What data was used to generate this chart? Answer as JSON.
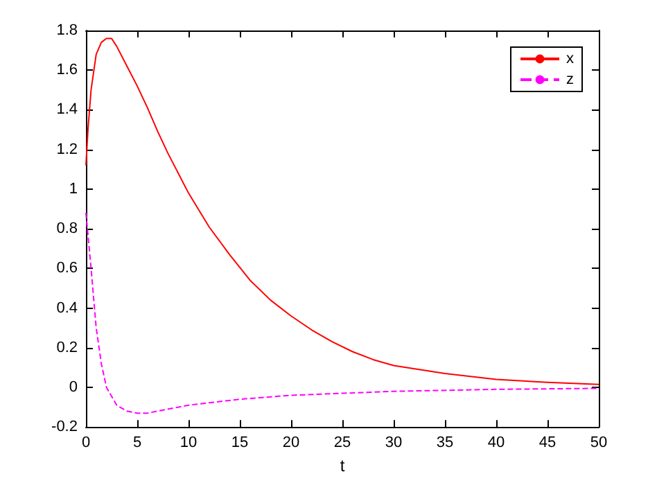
{
  "chart_data": {
    "type": "line",
    "xlabel": "t",
    "xlim": [
      0,
      50
    ],
    "xticks": [
      0,
      5,
      10,
      15,
      20,
      25,
      30,
      35,
      40,
      45,
      50
    ],
    "ylim": [
      -0.2,
      1.8
    ],
    "yticks": [
      -0.2,
      0,
      0.2,
      0.4,
      0.6,
      0.8,
      1,
      1.2,
      1.4,
      1.6,
      1.8
    ],
    "grid": false,
    "legend": "top right",
    "marker": "none",
    "series": [
      {
        "name": "x",
        "color": "#ff0000",
        "line_style": "solid",
        "x": [
          0,
          0.2,
          0.5,
          1,
          1.5,
          2,
          2.5,
          3,
          4,
          5,
          6,
          7,
          8,
          9,
          10,
          12,
          14,
          16,
          18,
          20,
          22,
          24,
          26,
          28,
          30,
          35,
          40,
          45,
          50
        ],
        "values": [
          1.12,
          1.3,
          1.5,
          1.68,
          1.74,
          1.76,
          1.76,
          1.72,
          1.62,
          1.52,
          1.41,
          1.29,
          1.18,
          1.08,
          0.98,
          0.81,
          0.67,
          0.54,
          0.44,
          0.36,
          0.29,
          0.23,
          0.18,
          0.14,
          0.11,
          0.07,
          0.04,
          0.025,
          0.015
        ]
      },
      {
        "name": "z",
        "color": "#ff00ff",
        "line_style": "dashed",
        "x": [
          0,
          0.5,
          1,
          1.5,
          2,
          3,
          4,
          5,
          6,
          7,
          10,
          15,
          20,
          25,
          30,
          40,
          50
        ],
        "values": [
          0.88,
          0.6,
          0.3,
          0.12,
          0,
          -0.09,
          -0.12,
          -0.13,
          -0.13,
          -0.12,
          -0.09,
          -0.06,
          -0.04,
          -0.03,
          -0.02,
          -0.01,
          -0.005
        ]
      }
    ]
  }
}
